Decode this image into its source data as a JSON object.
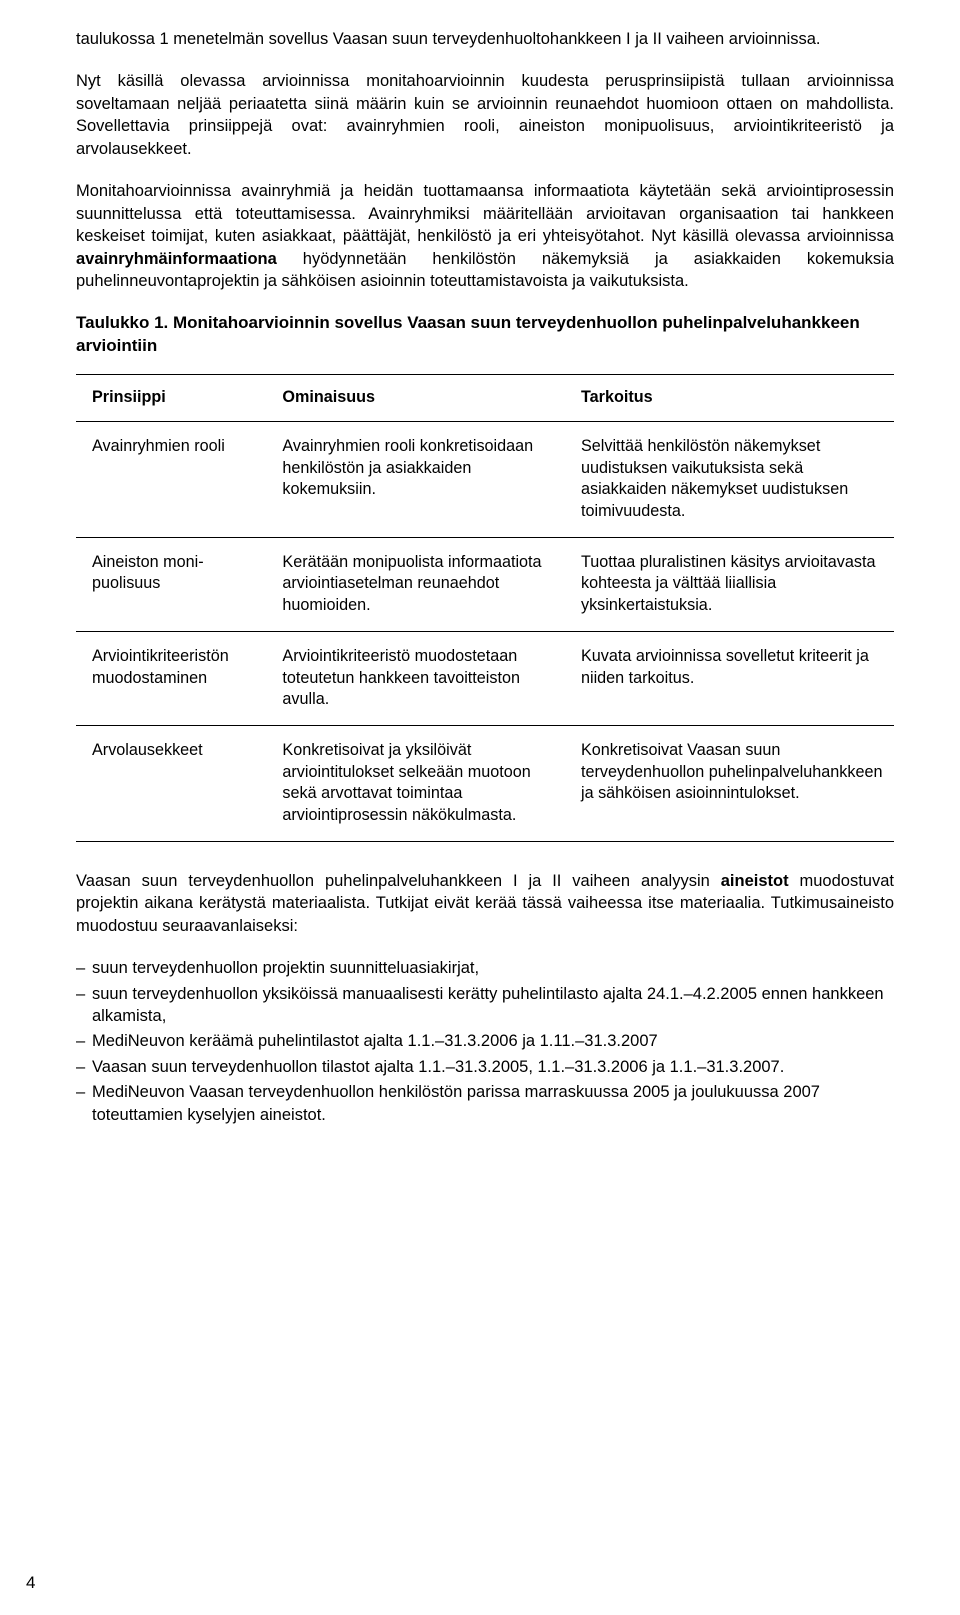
{
  "paragraphs": {
    "p1": "taulukossa 1 menetelmän sovellus Vaasan suun terveydenhuoltohankkeen I ja II vaiheen arvioinnissa.",
    "p2a": "Nyt käsillä olevassa arvioinnissa monitahoarvioinnin kuudesta perusprinsiipistä tullaan arvioinnissa soveltamaan neljää periaatetta siinä määrin kuin se arvioinnin reunaehdot huomioon ottaen on mahdollista. Sovellettavia prinsiippejä ovat: avainryhmien rooli, aineiston monipuolisuus, arviointikriteeristö ja arvolausekkeet.",
    "p3a": "Monitahoarvioinnissa avainryhmiä ja heidän tuottamaansa informaatiota käytetään sekä arviointiprosessin suunnittelussa että toteuttamisessa. Avainryhmiksi määritellään arvioitavan organisaation tai hankkeen keskeiset toimijat, kuten asiakkaat, päättäjät, henkilöstö ja eri yhteisyötahot. Nyt käsillä olevassa arvioinnissa ",
    "p3_bold": "avainryhmäinformaationa",
    "p3b": " hyödynnetään henkilöstön näkemyksiä ja asiakkaiden kokemuksia puhelinneuvontaprojektin ja sähköisen asioinnin toteuttamistavoista ja vaikutuksista.",
    "p4a": "Vaasan suun terveydenhuollon puhelinpalveluhankkeen I ja II vaiheen analyysin ",
    "p4_bold": "aineistot",
    "p4b": " muodostuvat projektin aikana kerätystä materiaalista. Tutkijat eivät kerää tässä vaiheessa itse materiaalia. Tutkimusaineisto muodostuu seuraavanlaiseksi:"
  },
  "table": {
    "caption": "Taulukko 1. Monitahoarvioinnin sovellus Vaasan suun terveydenhuollon puhelin­palveluhankkeen arviointiin",
    "headers": {
      "c1": "Prinsiippi",
      "c2": "Ominaisuus",
      "c3": "Tarkoitus"
    },
    "rows": [
      {
        "c1": "Avainryhmien rooli",
        "c2": "Avainryhmien rooli konkretisoidaan henkilöstön ja asiakkaiden kokemuksiin.",
        "c3": "Selvittää henkilöstön näkemykset uudistuksen vaikutuksista sekä asiakkaiden näkemykset uudistuksen toimivuudesta."
      },
      {
        "c1": "Aineiston moni­puolisuus",
        "c2": "Kerätään monipuolista informaatiota arviointiasetelman reunaehdot huomioiden.",
        "c3": "Tuottaa pluralistinen käsitys arvioitavasta kohteesta ja välttää liiallisia yksinkertaistuksia."
      },
      {
        "c1": "Arviointi­kriteeristön muodostaminen",
        "c2": "Arviointikriteeristö muodostetaan toteutetun hankkeen tavoitteiston avulla.",
        "c3": "Kuvata arvioinnissa sovelletut kriteerit ja niiden tarkoitus."
      },
      {
        "c1": "Arvolausekkeet",
        "c2": "Konkretisoivat ja yksilöivät arviointitulokset selkeään muotoon sekä arvottavat toimintaa arviointiprosessin näkökulmasta.",
        "c3": "Konkretisoivat Vaasan suun terveydenhuollon puhelinpalveluhankkeen ja sähköisen asioinnintulokset."
      }
    ]
  },
  "bullets": [
    "suun terveydenhuollon projektin suunnitteluasiakirjat,",
    "suun terveydenhuollon yksiköissä manuaalisesti kerätty puhelintilasto ajalta 24.1.–4.2.2005 ennen hankkeen alkamista,",
    "MediNeuvon keräämä puhelintilastot ajalta 1.1.–31.3.2006 ja 1.11.–31.3.2007",
    "Vaasan suun terveydenhuollon tilastot ajalta 1.1.–31.3.2005,  1.1.–31.3.2006 ja 1.1.–31.3.2007.",
    "MediNeuvon Vaasan terveydenhuollon henkilöstön parissa marraskuussa 2005 ja  joulukuussa 2007 toteuttamien kyselyjen aineistot."
  ],
  "page_number": "4"
}
